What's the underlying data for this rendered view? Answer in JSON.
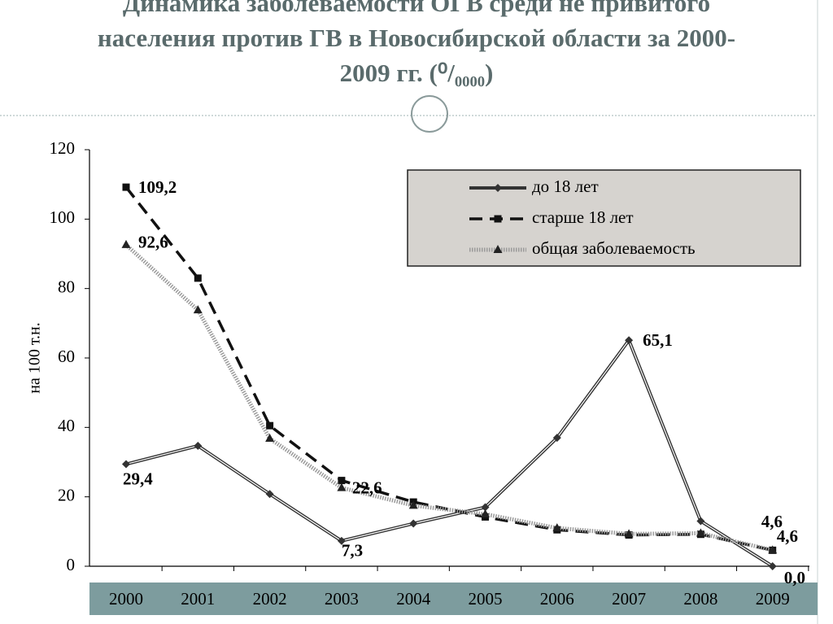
{
  "chart_data": {
    "type": "line",
    "title": "Динамика заболеваемости ОГВ среди не привитого населения против ГВ в Новосибирской области за 2000-2009 гг. (⁰/₀₀₀₀)",
    "y_label": "на 100 т.н.",
    "categories": [
      "2000",
      "2001",
      "2002",
      "2003",
      "2004",
      "2005",
      "2006",
      "2007",
      "2008",
      "2009"
    ],
    "ylim": [
      0,
      120
    ],
    "yticks": [
      0,
      20,
      40,
      60,
      80,
      100,
      120
    ],
    "legend": "upper right",
    "series": [
      {
        "name": "до 18 лет",
        "color": "#333333",
        "values": [
          29.4,
          34.7,
          20.8,
          7.3,
          12.3,
          17.0,
          37.0,
          65.1,
          13.0,
          0.0
        ],
        "value_labels": [
          "29,4",
          null,
          null,
          "7,3",
          null,
          null,
          null,
          "65,1",
          null,
          "0,0"
        ]
      },
      {
        "name": "старше 18 лет",
        "color": "#111111",
        "values": [
          109.2,
          83.0,
          40.5,
          24.7,
          18.5,
          14.2,
          10.5,
          9.0,
          9.2,
          4.6
        ],
        "value_labels": [
          "109,2",
          null,
          null,
          null,
          null,
          null,
          null,
          null,
          null,
          "4,6"
        ]
      },
      {
        "name": "общая заболеваемость",
        "color": "#9a9a9a",
        "values": [
          92.6,
          73.8,
          36.8,
          22.6,
          17.5,
          15.0,
          11.0,
          9.3,
          9.5,
          4.6
        ],
        "value_labels": [
          "92,6",
          null,
          null,
          "22,6",
          null,
          null,
          null,
          null,
          null,
          "4,6"
        ]
      }
    ]
  }
}
